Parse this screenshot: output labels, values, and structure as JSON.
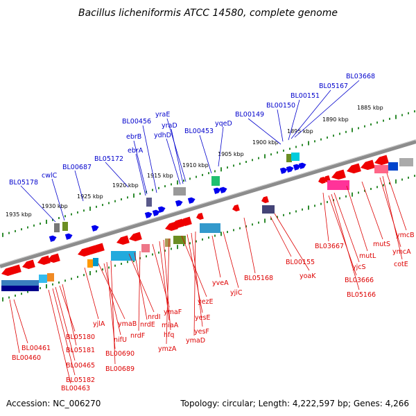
{
  "title": "Bacillus licheniformis ATCC 14580, complete genome",
  "footer": {
    "accession": "Accession: NC_006270",
    "summary": "Topology: circular; Length: 4,222,597 bp; Genes: 4,266"
  },
  "colors": {
    "forward_label": "#0000cc",
    "reverse_label": "#dd0000",
    "tick": "#2e8b2e",
    "backbone": "#888888"
  },
  "kbp_ticks": [
    "1935 kbp",
    "1930 kbp",
    "1925 kbp",
    "1920 kbp",
    "1915 kbp",
    "1910 kbp",
    "1905 kbp",
    "1900 kbp",
    "1895 kbp",
    "1890 kbp",
    "1885 kbp"
  ],
  "forward_labels": [
    "BL05178",
    "cwlC",
    "BL00687",
    "BL05172",
    "ebrA",
    "ebrB",
    "BL00456",
    "ydhD",
    "yraD",
    "yraE",
    "BL00453",
    "yqeD",
    "BL00149",
    "BL00150",
    "BL00151",
    "BL05167",
    "BL03668"
  ],
  "reverse_labels": [
    "BL00461",
    "BL00460",
    "BL05180",
    "BL05181",
    "BL00465",
    "BL05182",
    "BL00463",
    "yjlA",
    "ymaB",
    "nifU",
    "BL00690",
    "BL00689",
    "nrdI",
    "nrdE",
    "nrdF",
    "ymaF",
    "miaA",
    "hfq",
    "ymzA",
    "yezE",
    "yesE",
    "yesF",
    "ymaD",
    "yveA",
    "yjiC",
    "BL05168",
    "BL00155",
    "yoaK",
    "BL03667",
    "BL03666",
    "BL05166",
    "yjcS",
    "mutL",
    "mutS",
    "ymcA",
    "cotE",
    "ymcB"
  ]
}
